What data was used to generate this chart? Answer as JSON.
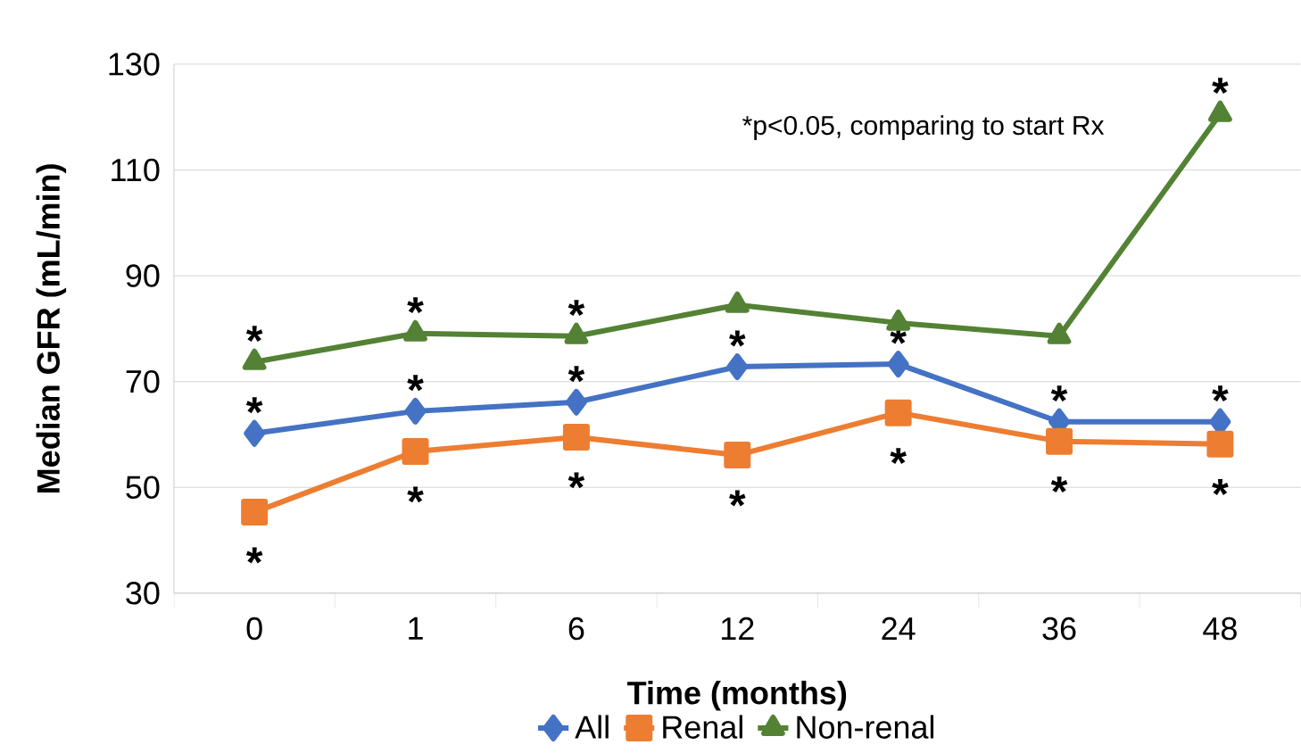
{
  "chart_data": {
    "type": "line",
    "xlabel": "Time (months)",
    "ylabel": "Median GFR (mL/min)",
    "categories": [
      "0",
      "1",
      "6",
      "12",
      "24",
      "36",
      "48"
    ],
    "series": [
      {
        "name": "All",
        "color": "#4472c4",
        "marker": "diamond",
        "values": [
          60.2,
          64.4,
          66.1,
          72.8,
          73.3,
          62.4,
          62.4
        ]
      },
      {
        "name": "Renal",
        "color": "#ed7d31",
        "marker": "square",
        "values": [
          45.3,
          56.8,
          59.5,
          56.1,
          64.1,
          58.7,
          58.2
        ]
      },
      {
        "name": "Non-renal",
        "color": "#548235",
        "marker": "triangle",
        "values": [
          73.7,
          79.1,
          78.6,
          84.5,
          81.1,
          78.6,
          120.6
        ]
      }
    ],
    "ylim": [
      30,
      130
    ],
    "yticks": [
      30,
      50,
      70,
      90,
      110,
      130
    ],
    "grid": "y",
    "legend": "bottom",
    "annotations": [
      "*p<0.05, comparing to start Rx",
      {
        "text": "*",
        "x": "0",
        "y": 73.7
      },
      {
        "text": "*",
        "x": "0",
        "y": 60.2
      },
      {
        "text": "*",
        "x": "0",
        "y": 45.3
      },
      {
        "text": "*",
        "x": "1",
        "y": 79.1
      },
      {
        "text": "*",
        "x": "1",
        "y": 64.4
      },
      {
        "text": "*",
        "x": "1",
        "y": 56.8
      },
      {
        "text": "*",
        "x": "6",
        "y": 78.6
      },
      {
        "text": "*",
        "x": "6",
        "y": 66.1
      },
      {
        "text": "*",
        "x": "6",
        "y": 59.5
      },
      {
        "text": "*",
        "x": "12",
        "y": 72.8
      },
      {
        "text": "*",
        "x": "12",
        "y": 56.1
      },
      {
        "text": "*",
        "x": "24",
        "y": 73.3
      },
      {
        "text": "*",
        "x": "24",
        "y": 64.1
      },
      {
        "text": "*",
        "x": "36",
        "y": 62.4
      },
      {
        "text": "*",
        "x": "36",
        "y": 58.7
      },
      {
        "text": "*",
        "x": "48",
        "y": 120.6
      },
      {
        "text": "*",
        "x": "48",
        "y": 62.4
      },
      {
        "text": "*",
        "x": "48",
        "y": 58.2
      }
    ]
  }
}
